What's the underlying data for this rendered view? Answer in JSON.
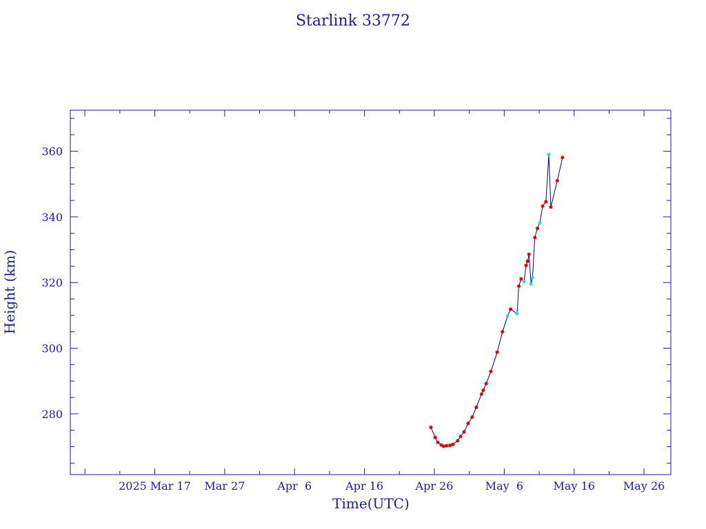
{
  "chart_data": {
    "type": "line",
    "title": "Starlink 33772",
    "xlabel": "Time(UTC)",
    "ylabel": "Height (km)",
    "x_unit": "date (UTC)",
    "xlim": [
      "2025-03-04T22:00",
      "2025-05-29T20:00"
    ],
    "ylim": [
      261.5,
      372.5
    ],
    "x_tick_labels": [
      {
        "date": "2025-03-17",
        "label": "2025 Mar 17"
      },
      {
        "date": "2025-03-27",
        "label": "Mar 27"
      },
      {
        "date": "2025-04-06",
        "label": "Apr  6"
      },
      {
        "date": "2025-04-16",
        "label": "Apr 16"
      },
      {
        "date": "2025-04-26",
        "label": "Apr 26"
      },
      {
        "date": "2025-05-06",
        "label": "May  6"
      },
      {
        "date": "2025-05-16",
        "label": "May 16"
      },
      {
        "date": "2025-05-26",
        "label": "May 26"
      }
    ],
    "y_ticks": [
      280,
      300,
      320,
      340,
      360
    ],
    "grid": false,
    "line_color": "#000080",
    "marker_colors": {
      "red": "#dd0000",
      "cyan": "#22dddd"
    },
    "points": [
      {
        "t": "2025-04-25T12:00",
        "h": 275.9,
        "c": "red"
      },
      {
        "t": "2025-04-26T03:00",
        "h": 272.8,
        "c": "red"
      },
      {
        "t": "2025-04-26T12:00",
        "h": 271.3,
        "c": "red"
      },
      {
        "t": "2025-04-27T00:00",
        "h": 270.5,
        "c": "red"
      },
      {
        "t": "2025-04-27T08:00",
        "h": 270.1,
        "c": "red"
      },
      {
        "t": "2025-04-27T18:00",
        "h": 270.3,
        "c": "red"
      },
      {
        "t": "2025-04-28T06:00",
        "h": 270.4,
        "c": "red"
      },
      {
        "t": "2025-04-28T16:00",
        "h": 270.7,
        "c": "red"
      },
      {
        "t": "2025-04-29T08:00",
        "h": 271.8,
        "c": "red"
      },
      {
        "t": "2025-04-29T18:00",
        "h": 273.1,
        "c": "red"
      },
      {
        "t": "2025-04-30T06:00",
        "h": 274.5,
        "c": "red"
      },
      {
        "t": "2025-04-30T20:00",
        "h": 277.1,
        "c": "red"
      },
      {
        "t": "2025-05-01T10:00",
        "h": 279.0,
        "c": "red"
      },
      {
        "t": "2025-05-02T00:00",
        "h": 282.0,
        "c": "red"
      },
      {
        "t": "2025-05-02T18:00",
        "h": 286.0,
        "c": "red"
      },
      {
        "t": "2025-05-03T00:00",
        "h": 287.2,
        "c": "red"
      },
      {
        "t": "2025-05-03T10:00",
        "h": 289.2,
        "c": "red"
      },
      {
        "t": "2025-05-04T02:00",
        "h": 292.9,
        "c": "red"
      },
      {
        "t": "2025-05-05T00:00",
        "h": 298.8,
        "c": "red"
      },
      {
        "t": "2025-05-05T18:00",
        "h": 305.0,
        "c": "red"
      },
      {
        "t": "2025-05-06T12:00",
        "h": 309.9,
        "c": "cyan"
      },
      {
        "t": "2025-05-06T22:00",
        "h": 311.9,
        "c": "red"
      },
      {
        "t": "2025-05-07T20:00",
        "h": 310.5,
        "c": "cyan"
      },
      {
        "t": "2025-05-08T02:00",
        "h": 318.9,
        "c": "red"
      },
      {
        "t": "2025-05-08T10:00",
        "h": 321.1,
        "c": "red"
      },
      {
        "t": "2025-05-08T20:00",
        "h": 320.3,
        "c": "cyan"
      },
      {
        "t": "2025-05-09T03:00",
        "h": 325.2,
        "c": "red"
      },
      {
        "t": "2025-05-09T08:00",
        "h": 326.5,
        "c": "red"
      },
      {
        "t": "2025-05-09T13:00",
        "h": 328.6,
        "c": "red"
      },
      {
        "t": "2025-05-09T20:00",
        "h": 319.6,
        "c": "cyan"
      },
      {
        "t": "2025-05-10T01:00",
        "h": 321.5,
        "c": "cyan"
      },
      {
        "t": "2025-05-10T09:00",
        "h": 333.7,
        "c": "red"
      },
      {
        "t": "2025-05-10T18:00",
        "h": 336.5,
        "c": "red"
      },
      {
        "t": "2025-05-11T02:00",
        "h": 338.2,
        "c": "cyan"
      },
      {
        "t": "2025-05-11T12:00",
        "h": 343.3,
        "c": "red"
      },
      {
        "t": "2025-05-11T23:00",
        "h": 344.6,
        "c": "red"
      },
      {
        "t": "2025-05-12T09:00",
        "h": 359.0,
        "c": "cyan"
      },
      {
        "t": "2025-05-12T16:00",
        "h": 343.0,
        "c": "red"
      },
      {
        "t": "2025-05-13T14:00",
        "h": 351.0,
        "c": "red"
      },
      {
        "t": "2025-05-14T08:00",
        "h": 358.1,
        "c": "red"
      }
    ]
  }
}
